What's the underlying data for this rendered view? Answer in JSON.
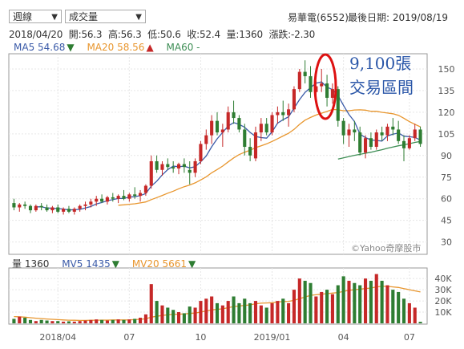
{
  "header": {
    "period_select": "週線",
    "indicator_select": "成交量",
    "stock_name": "易華電(6552)",
    "last_date_label": "最後日期: 2019/08/19",
    "ohlc": {
      "date": "2018/04/20",
      "open": "開:56.3",
      "high": "高:56.3",
      "low": "低:50.6",
      "close": "收:52.4",
      "volume": "量:1360",
      "change": "漲跌:-2.30"
    }
  },
  "colors": {
    "up": "#c62828",
    "down": "#2e7d32",
    "ma5": "#3a5aa8",
    "ma20": "#e8962e",
    "ma60": "#3e8e55",
    "vol_ma20": "#e8962e",
    "annotation": "#2a56a8",
    "ellipse": "#dd1111"
  },
  "price_legend": {
    "ma5": "MA5 54.68",
    "ma5_arrow": "▼",
    "ma20": "MA20 58.56",
    "ma20_arrow": "▲",
    "ma60": "MA60 -"
  },
  "volume_legend": {
    "vol": "量 1360",
    "mv5": "MV5 1435",
    "mv5_arrow": "▼",
    "mv20": "MV20 5661",
    "mv20_arrow": "▼"
  },
  "annotation": {
    "line1": "9,100張",
    "line2": "交易區間"
  },
  "watermark": "©Yahoo奇摩股市",
  "chart_data": [
    {
      "type": "candlestick",
      "title": "易華電(6552) 週線",
      "x_tick_labels": [
        "2018/04",
        "07",
        "10",
        "2019/01",
        "04",
        "07"
      ],
      "x_tick_weeks": [
        8,
        21,
        34,
        47,
        60,
        72
      ],
      "y_ticks": [
        30,
        45,
        60,
        75,
        90,
        105,
        120,
        135,
        150
      ],
      "ylim": [
        22,
        160
      ],
      "candles": [
        [
          57,
          60,
          52,
          54
        ],
        [
          54,
          57,
          51,
          56
        ],
        [
          56,
          58,
          53,
          55
        ],
        [
          55,
          56,
          50,
          52
        ],
        [
          52,
          56,
          51,
          55
        ],
        [
          55,
          57,
          52,
          54
        ],
        [
          54,
          56,
          51,
          52
        ],
        [
          52,
          55,
          50,
          54
        ],
        [
          54,
          56,
          50,
          51
        ],
        [
          51,
          54,
          49,
          53
        ],
        [
          53,
          55,
          50,
          51
        ],
        [
          51,
          54,
          49,
          53
        ],
        [
          53,
          56,
          51,
          55
        ],
        [
          55,
          58,
          52,
          56
        ],
        [
          56,
          60,
          54,
          58
        ],
        [
          58,
          62,
          55,
          60
        ],
        [
          60,
          63,
          57,
          58
        ],
        [
          58,
          62,
          56,
          61
        ],
        [
          61,
          64,
          58,
          60
        ],
        [
          60,
          63,
          57,
          62
        ],
        [
          62,
          66,
          59,
          60
        ],
        [
          60,
          64,
          58,
          63
        ],
        [
          63,
          68,
          60,
          62
        ],
        [
          62,
          66,
          58,
          64
        ],
        [
          64,
          70,
          62,
          69
        ],
        [
          69,
          90,
          67,
          86
        ],
        [
          86,
          90,
          78,
          80
        ],
        [
          80,
          86,
          76,
          84
        ],
        [
          84,
          88,
          80,
          82
        ],
        [
          82,
          86,
          78,
          81
        ],
        [
          81,
          85,
          77,
          84
        ],
        [
          84,
          88,
          78,
          82
        ],
        [
          80,
          86,
          70,
          78
        ],
        [
          78,
          88,
          75,
          86
        ],
        [
          86,
          100,
          84,
          98
        ],
        [
          98,
          108,
          94,
          104
        ],
        [
          104,
          118,
          98,
          114
        ],
        [
          114,
          120,
          104,
          106
        ],
        [
          106,
          112,
          96,
          108
        ],
        [
          108,
          124,
          106,
          120
        ],
        [
          120,
          128,
          112,
          116
        ],
        [
          116,
          118,
          106,
          108
        ],
        [
          108,
          112,
          90,
          96
        ],
        [
          96,
          102,
          86,
          90
        ],
        [
          88,
          110,
          86,
          106
        ],
        [
          106,
          116,
          100,
          112
        ],
        [
          112,
          116,
          104,
          106
        ],
        [
          106,
          120,
          104,
          118
        ],
        [
          118,
          124,
          112,
          120
        ],
        [
          120,
          128,
          114,
          118
        ],
        [
          118,
          126,
          110,
          122
        ],
        [
          122,
          138,
          120,
          136
        ],
        [
          136,
          150,
          134,
          148
        ],
        [
          148,
          156,
          140,
          145
        ],
        [
          145,
          152,
          130,
          134
        ],
        [
          134,
          142,
          128,
          138
        ],
        [
          138,
          150,
          134,
          140
        ],
        [
          140,
          146,
          124,
          130
        ],
        [
          130,
          140,
          126,
          136
        ],
        [
          136,
          138,
          110,
          114
        ],
        [
          114,
          116,
          98,
          104
        ],
        [
          104,
          112,
          96,
          108
        ],
        [
          108,
          114,
          100,
          106
        ],
        [
          106,
          110,
          90,
          92
        ],
        [
          92,
          104,
          88,
          102
        ],
        [
          102,
          106,
          94,
          96
        ],
        [
          96,
          108,
          94,
          106
        ],
        [
          106,
          110,
          100,
          104
        ],
        [
          104,
          112,
          100,
          110
        ],
        [
          110,
          116,
          104,
          108
        ],
        [
          108,
          114,
          98,
          100
        ],
        [
          100,
          104,
          86,
          95
        ],
        [
          95,
          104,
          94,
          102
        ],
        [
          102,
          112,
          100,
          108
        ],
        [
          108,
          110,
          96,
          98
        ]
      ]
    },
    {
      "type": "bar",
      "title": "成交量",
      "y_ticks": [
        "10K",
        "20K",
        "30K",
        "40K"
      ],
      "y_tick_values": [
        10000,
        20000,
        30000,
        40000
      ],
      "ylim": [
        0,
        48000
      ],
      "volumes": [
        4000,
        6000,
        5000,
        3000,
        2000,
        3000,
        2500,
        2000,
        2000,
        1500,
        1800,
        1500,
        2000,
        2500,
        3000,
        3500,
        3000,
        2500,
        3000,
        3500,
        3000,
        3500,
        4000,
        5000,
        8000,
        35000,
        20000,
        16000,
        14000,
        12000,
        10000,
        9000,
        15000,
        14000,
        20000,
        22000,
        24000,
        18000,
        16000,
        20000,
        24000,
        18000,
        22000,
        18000,
        20000,
        16000,
        14000,
        18000,
        20000,
        22000,
        18000,
        30000,
        40000,
        38000,
        36000,
        24000,
        28000,
        30000,
        26000,
        34000,
        42000,
        38000,
        36000,
        34000,
        40000,
        38000,
        44000,
        38000,
        34000,
        30000,
        28000,
        22000,
        18000,
        14000,
        1360
      ],
      "mv20": [
        6000,
        5800,
        5500,
        5000,
        4600,
        4200,
        3900,
        3600,
        3300,
        3000,
        2800,
        2700,
        2600,
        2600,
        2700,
        2800,
        2900,
        2900,
        3000,
        3000,
        3000,
        3100,
        3300,
        3600,
        4000,
        5500,
        6300,
        7000,
        7600,
        8000,
        8200,
        8400,
        8800,
        9200,
        10000,
        11000,
        12000,
        12500,
        13000,
        14000,
        15000,
        15500,
        16000,
        16500,
        17500,
        18000,
        18200,
        18400,
        19000,
        19500,
        19600,
        20500,
        22000,
        23500,
        25000,
        25500,
        26000,
        26500,
        27000,
        27500,
        28500,
        29500,
        30000,
        30500,
        31000,
        31500,
        32500,
        33000,
        33000,
        32500,
        32000,
        31000,
        30000,
        29000,
        28000
      ]
    }
  ]
}
